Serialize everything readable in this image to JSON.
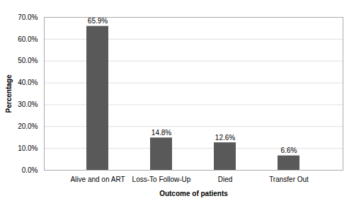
{
  "chart_data": {
    "type": "bar",
    "categories": [
      "Alive and on ART",
      "Loss-To Follow-Up",
      "Died",
      "Transfer Out"
    ],
    "values": [
      65.9,
      14.8,
      12.6,
      6.6
    ],
    "value_labels": [
      "65.9%",
      "14.8%",
      "12.6%",
      "6.6%"
    ],
    "color": "#595959",
    "xlabel": "Outcome of patients",
    "ylabel": "Percentage",
    "ylim": [
      0,
      70
    ],
    "yticks": [
      {
        "value": 0,
        "label": "0.0%"
      },
      {
        "value": 10,
        "label": "10.0%"
      },
      {
        "value": 20,
        "label": "20.0%"
      },
      {
        "value": 30,
        "label": "30.0%"
      },
      {
        "value": 40,
        "label": "40.0%"
      },
      {
        "value": 50,
        "label": "50.0%"
      },
      {
        "value": 60,
        "label": "60.0%"
      },
      {
        "value": 70,
        "label": "70.0%"
      }
    ],
    "grid": true,
    "data_labels": true
  }
}
